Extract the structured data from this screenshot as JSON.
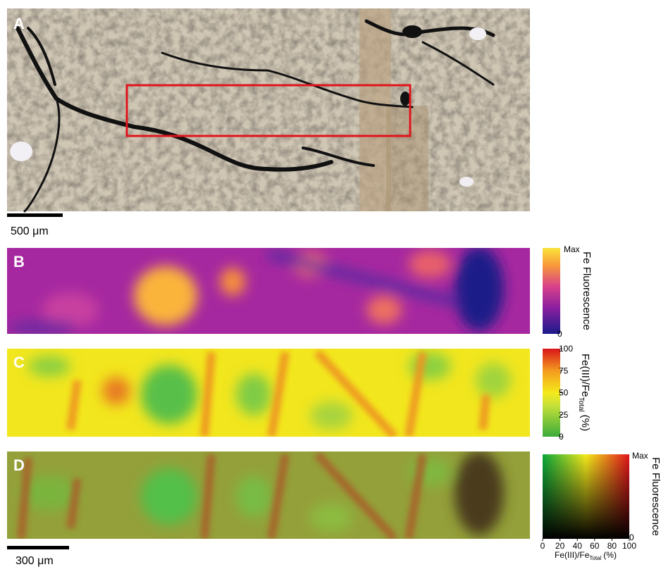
{
  "panels": [
    {
      "label": "A",
      "scale_bar": "500 μm"
    },
    {
      "label": "B",
      "colorbar": {
        "max": "Max",
        "min": "0",
        "title": "Fe Fluorescence"
      }
    },
    {
      "label": "C",
      "colorbar": {
        "ticks": [
          100,
          75,
          50,
          25,
          0
        ],
        "title": {
          "main": "Fe(III)/Fe",
          "sub": "Total",
          "unit": "(%)"
        }
      }
    },
    {
      "label": "D",
      "scale_bar": "300 μm",
      "colorbar": {
        "max": "Max",
        "min": "0",
        "title": "Fe Fluorescence",
        "xticks": [
          0,
          20,
          40,
          60,
          80,
          100
        ],
        "xtitle": {
          "main": "Fe(III)/Fe",
          "sub": "Total",
          "unit": "(%)"
        }
      }
    }
  ]
}
